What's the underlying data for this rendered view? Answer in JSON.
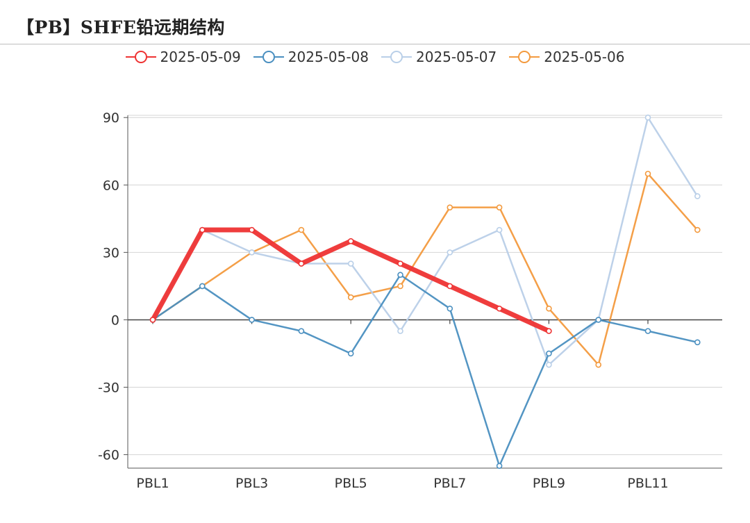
{
  "title": "【PB】SHFE铅远期结构",
  "colors": {
    "grid": "#d4d4d4",
    "axis": "#555555",
    "zero_line": "#444444",
    "tick_text": "#333333"
  },
  "chart_data": {
    "type": "line",
    "title": "【PB】SHFE铅远期结构",
    "categories": [
      "PBL1",
      "PBL2",
      "PBL3",
      "PBL4",
      "PBL5",
      "PBL6",
      "PBL7",
      "PBL8",
      "PBL9",
      "PBL10",
      "PBL11",
      "PBL12"
    ],
    "x_tick_labels": [
      "PBL1",
      "PBL3",
      "PBL5",
      "PBL7",
      "PBL9",
      "PBL11"
    ],
    "yticks": [
      90,
      60,
      30,
      0,
      -30,
      -60
    ],
    "ylim": [
      -66,
      91
    ],
    "grid": true,
    "legend_position": "top-center",
    "series": [
      {
        "name": "2025-05-09",
        "color": "#ee3333",
        "values": [
          0,
          40,
          40,
          25,
          35,
          25,
          15,
          5,
          -5,
          null,
          null,
          null
        ]
      },
      {
        "name": "2025-05-08",
        "color": "#4a8fc0",
        "values": [
          0,
          15,
          0,
          -5,
          -15,
          20,
          5,
          -65,
          -15,
          0,
          -5,
          -10
        ]
      },
      {
        "name": "2025-05-07",
        "color": "#b9cfe8",
        "values": [
          0,
          40,
          30,
          25,
          25,
          -5,
          30,
          40,
          -20,
          0,
          90,
          55
        ]
      },
      {
        "name": "2025-05-06",
        "color": "#f39a3e",
        "values": [
          0,
          15,
          30,
          40,
          10,
          15,
          50,
          50,
          5,
          -20,
          65,
          40
        ]
      }
    ]
  }
}
